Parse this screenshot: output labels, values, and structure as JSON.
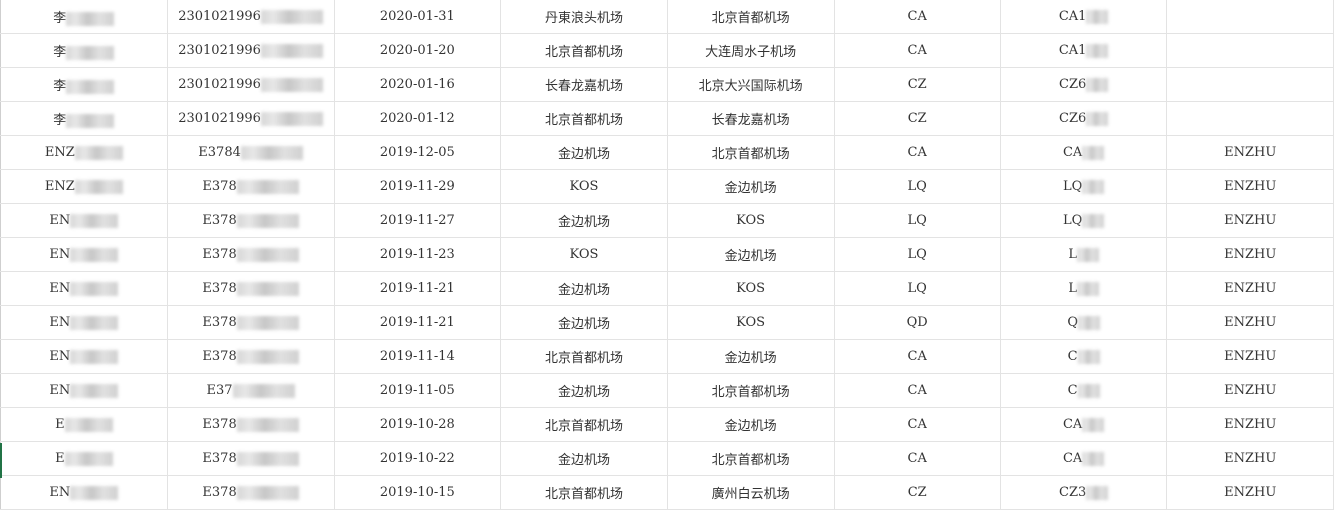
{
  "rows": [
    {
      "name": "李",
      "id": "2301021996",
      "date": "2020-01-31",
      "from": "丹東浪头机场",
      "to": "北京首都机场",
      "airline": "CA",
      "flight": "CA1",
      "extra": ""
    },
    {
      "name": "李",
      "id": "2301021996",
      "date": "2020-01-20",
      "from": "北京首都机场",
      "to": "大连周水子机场",
      "airline": "CA",
      "flight": "CA1",
      "extra": ""
    },
    {
      "name": "李",
      "id": "2301021996",
      "date": "2020-01-16",
      "from": "长春龙嘉机场",
      "to": "北京大兴国际机场",
      "airline": "CZ",
      "flight": "CZ6",
      "extra": ""
    },
    {
      "name": "李",
      "id": "2301021996",
      "date": "2020-01-12",
      "from": "北京首都机场",
      "to": "长春龙嘉机场",
      "airline": "CZ",
      "flight": "CZ6",
      "extra": ""
    },
    {
      "name": "ENZ",
      "id": "E3784",
      "date": "2019-12-05",
      "from": "金边机场",
      "to": "北京首都机场",
      "airline": "CA",
      "flight": "CA",
      "extra": "ENZHU"
    },
    {
      "name": "ENZ",
      "id": "E378",
      "date": "2019-11-29",
      "from": "KOS",
      "to": "金边机场",
      "airline": "LQ",
      "flight": "LQ",
      "extra": "ENZHU"
    },
    {
      "name": "EN",
      "id": "E378",
      "date": "2019-11-27",
      "from": "金边机场",
      "to": "KOS",
      "airline": "LQ",
      "flight": "LQ",
      "extra": "ENZHU"
    },
    {
      "name": "EN",
      "id": "E378",
      "date": "2019-11-23",
      "from": "KOS",
      "to": "金边机场",
      "airline": "LQ",
      "flight": "L",
      "extra": "ENZHU"
    },
    {
      "name": "EN",
      "id": "E378",
      "date": "2019-11-21",
      "from": "金边机场",
      "to": "KOS",
      "airline": "LQ",
      "flight": "L",
      "extra": "ENZHU"
    },
    {
      "name": "EN",
      "id": "E378",
      "date": "2019-11-21",
      "from": "金边机场",
      "to": "KOS",
      "airline": "QD",
      "flight": "Q",
      "extra": "ENZHU"
    },
    {
      "name": "EN",
      "id": "E378",
      "date": "2019-11-14",
      "from": "北京首都机场",
      "to": "金边机场",
      "airline": "CA",
      "flight": "C",
      "extra": "ENZHU"
    },
    {
      "name": "EN",
      "id": "E37",
      "date": "2019-11-05",
      "from": "金边机场",
      "to": "北京首都机场",
      "airline": "CA",
      "flight": "C",
      "extra": "ENZHU"
    },
    {
      "name": "E",
      "id": "E378",
      "date": "2019-10-28",
      "from": "北京首都机场",
      "to": "金边机场",
      "airline": "CA",
      "flight": "CA",
      "extra": "ENZHU"
    },
    {
      "name": "E",
      "id": "E378",
      "date": "2019-10-22",
      "from": "金边机场",
      "to": "北京首都机场",
      "airline": "CA",
      "flight": "CA",
      "extra": "ENZHU"
    },
    {
      "name": "EN",
      "id": "E378",
      "date": "2019-10-15",
      "from": "北京首都机场",
      "to": "廣州白云机场",
      "airline": "CZ",
      "flight": "CZ3",
      "extra": "ENZHU"
    }
  ]
}
